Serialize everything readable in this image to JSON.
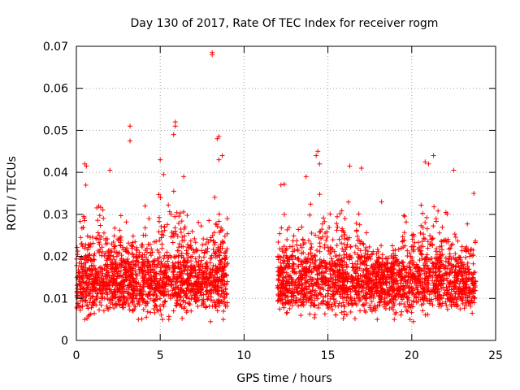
{
  "chart_data": {
    "type": "scatter",
    "title": "Day 130 of 2017, Rate Of TEC Index for receiver rogm",
    "xlabel": "GPS time / hours",
    "ylabel": "ROTI / TECUs",
    "xlim": [
      0,
      25
    ],
    "ylim": [
      0,
      0.07
    ],
    "xticks": [
      "0",
      "5",
      "10",
      "15",
      "20",
      "25"
    ],
    "yticks": [
      "0",
      "0.01",
      "0.02",
      "0.03",
      "0.04",
      "0.05",
      "0.06",
      "0.07"
    ],
    "grid": true,
    "marker": "plus",
    "color": "#ff0000",
    "data_gap_hours": [
      9.0,
      12.0
    ],
    "series": [
      {
        "points": [
          [
            8.1,
            0.0685
          ],
          [
            8.1,
            0.068
          ],
          [
            3.2,
            0.051
          ],
          [
            3.2,
            0.0475
          ],
          [
            5.9,
            0.052
          ],
          [
            5.9,
            0.051
          ],
          [
            5.8,
            0.049
          ],
          [
            8.5,
            0.0485
          ],
          [
            8.4,
            0.048
          ],
          [
            14.4,
            0.045
          ],
          [
            14.3,
            0.044
          ],
          [
            21.3,
            0.044
          ],
          [
            20.8,
            0.0425
          ],
          [
            0.5,
            0.042
          ],
          [
            16.3,
            0.0415
          ],
          [
            5.0,
            0.043
          ],
          [
            21.0,
            0.042
          ],
          [
            8.7,
            0.044
          ],
          [
            8.5,
            0.043
          ],
          [
            0.6,
            0.0415
          ],
          [
            14.5,
            0.042
          ],
          [
            22.5,
            0.0405
          ],
          [
            2.0,
            0.0405
          ],
          [
            17.0,
            0.041
          ],
          [
            12.2,
            0.037
          ],
          [
            12.4,
            0.0372
          ],
          [
            6.4,
            0.039
          ],
          [
            5.2,
            0.0395
          ],
          [
            23.7,
            0.035
          ],
          [
            18.2,
            0.033
          ],
          [
            12.4,
            0.03
          ],
          [
            13.7,
            0.039
          ],
          [
            4.1,
            0.032
          ],
          [
            9.0,
            0.029
          ],
          [
            9.0,
            0.014
          ],
          [
            9.0,
            0.009
          ],
          [
            8.0,
            0.0045
          ],
          [
            0.5,
            0.005
          ],
          [
            12.0,
            0.013
          ],
          [
            23.8,
            0.014
          ],
          [
            19.9,
            0.005
          ],
          [
            20.1,
            0.0045
          ]
        ]
      }
    ]
  }
}
